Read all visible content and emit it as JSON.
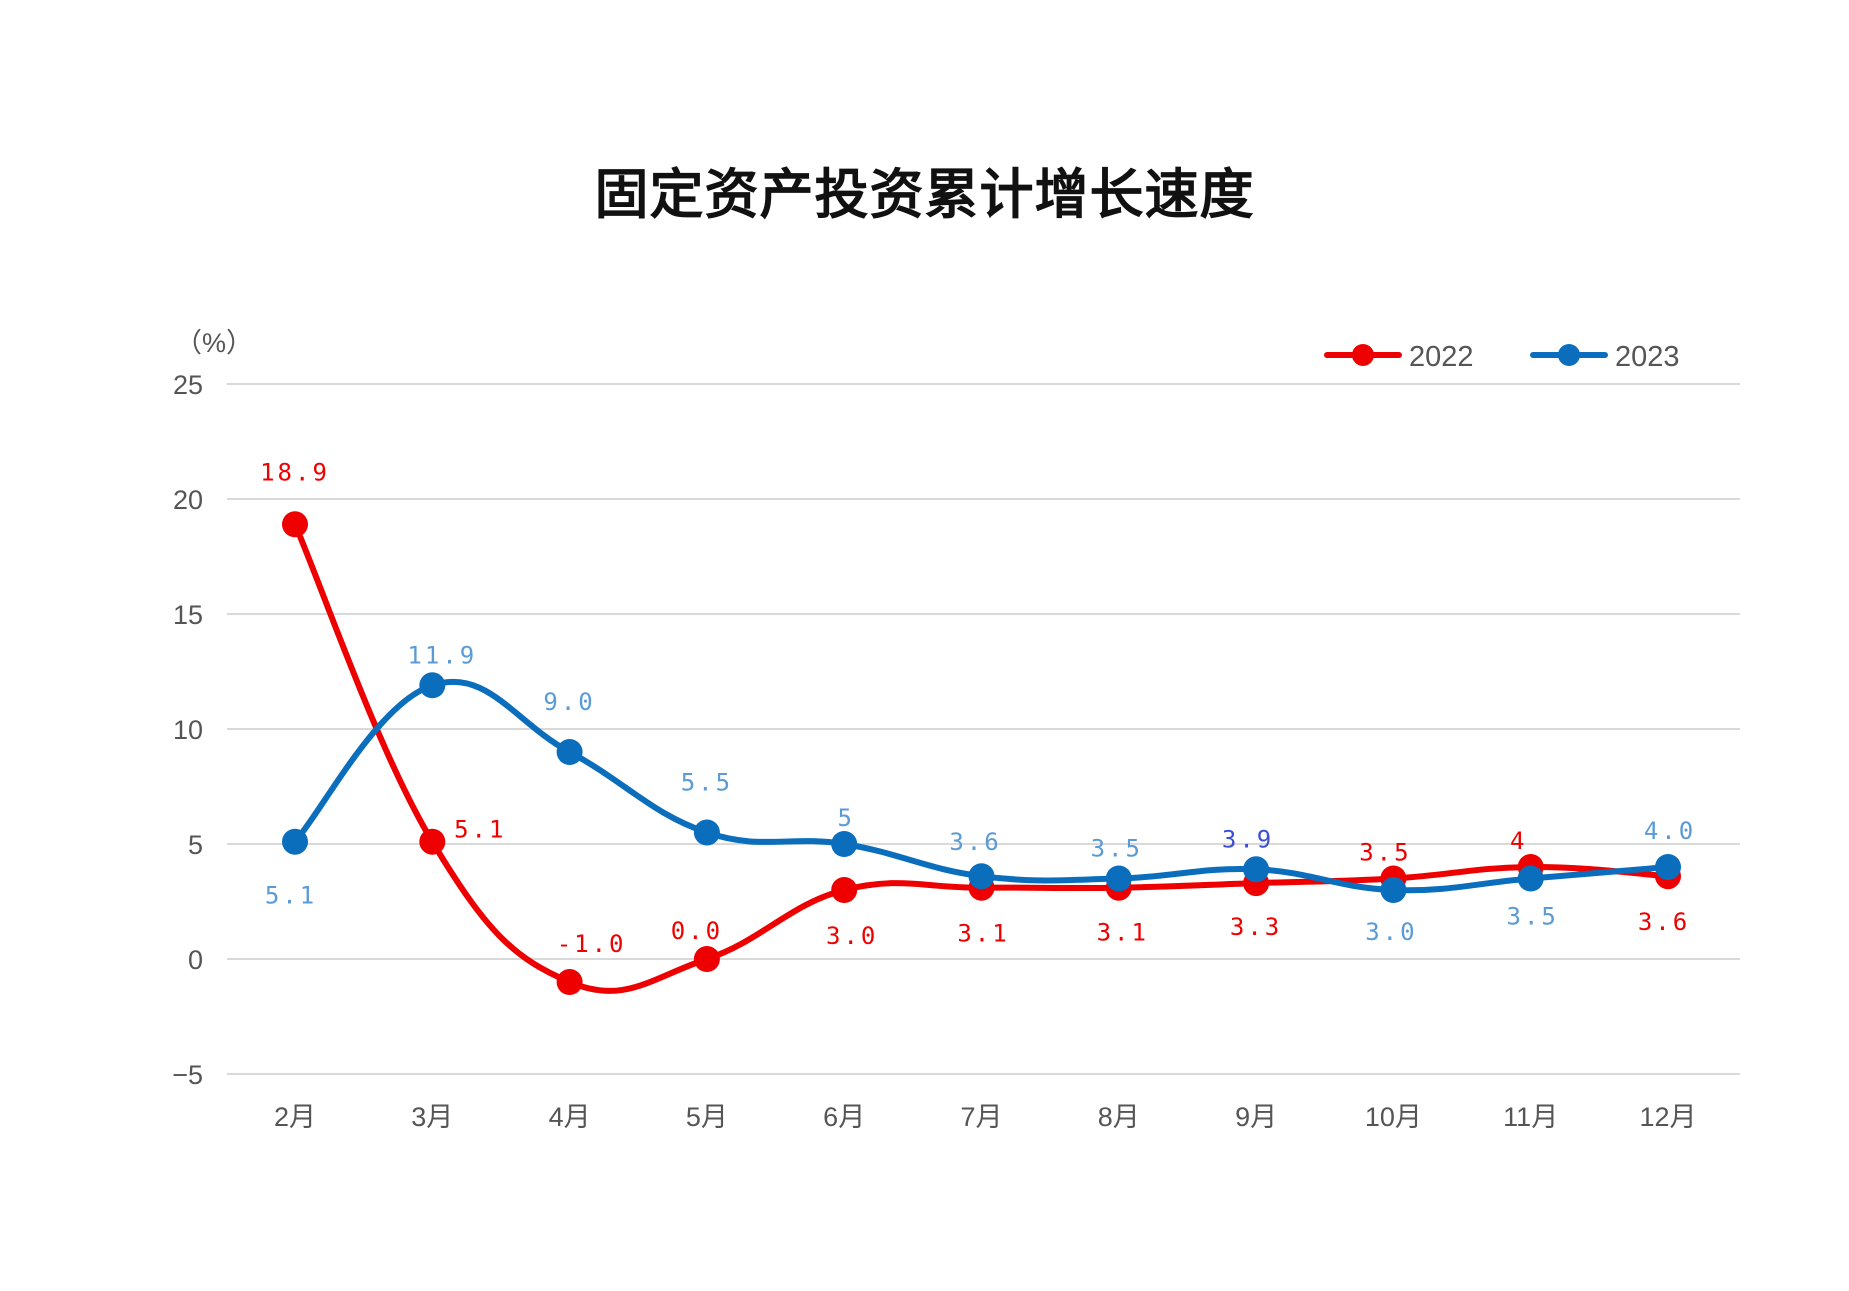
{
  "chart_data": {
    "type": "line",
    "title": "固定资产投资累计增长速度",
    "ylabel": "（%）",
    "xlabel": "",
    "categories": [
      "2月",
      "3月",
      "4月",
      "5月",
      "6月",
      "7月",
      "8月",
      "9月",
      "10月",
      "11月",
      "12月"
    ],
    "ylim": [
      -5,
      25
    ],
    "yticks": [
      -5,
      0,
      5,
      10,
      15,
      20,
      25
    ],
    "grid": true,
    "legend_position": "top-right",
    "smooth": true,
    "series": [
      {
        "name": "2022",
        "color": "#ee0000",
        "values": [
          18.9,
          5.1,
          -1.0,
          0.0,
          3.0,
          3.1,
          3.1,
          3.3,
          3.5,
          4.0,
          3.6
        ],
        "labels": [
          "18.9",
          "5.1",
          "-1.0",
          "0.0",
          "3.0",
          "3.1",
          "3.1",
          "3.3",
          "3.5",
          "4",
          "3.6"
        ]
      },
      {
        "name": "2023",
        "color": "#0a6ebd",
        "values": [
          5.1,
          11.9,
          9.0,
          5.5,
          5.0,
          3.6,
          3.5,
          3.9,
          3.0,
          3.5,
          4.0
        ],
        "labels": [
          "5.1",
          "11.9",
          "9.0",
          "5.5",
          "5",
          "3.6",
          "3.5",
          "3.9",
          "3.0",
          "3.5",
          "4.0"
        ]
      }
    ]
  }
}
